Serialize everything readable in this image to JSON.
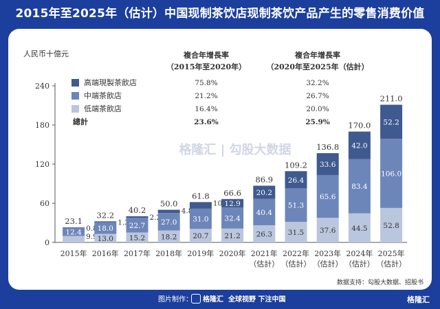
{
  "title": "2015年至2025年（估计）中国现制茶饮店现制茶饮产品产生的零售消费价值",
  "footer": {
    "made_by": "图片制作：",
    "brand": "格隆汇",
    "slogan": "全球视野 下注中国",
    "corner_brand": "格隆汇"
  },
  "watermark": "格隆汇 | 勾股大数据",
  "colors": {
    "header_bg": "#1c3f9e",
    "high": "#3f5a8f",
    "mid": "#6d86ba",
    "low": "#bac6de",
    "axis": "#555555",
    "text": "#333333"
  },
  "chart_data": {
    "type": "bar",
    "stacked": true,
    "unit_label": "人民币十億元",
    "categories": [
      [
        "2015年"
      ],
      [
        "2016年"
      ],
      [
        "2017年"
      ],
      [
        "2018年"
      ],
      [
        "2019年"
      ],
      [
        "2020年"
      ],
      [
        "2021年",
        "（估計）"
      ],
      [
        "2022年",
        "（估計）"
      ],
      [
        "2023年",
        "（估計）"
      ],
      [
        "2024年",
        "（估計）"
      ],
      [
        "2025年",
        "（估計）"
      ]
    ],
    "series": [
      {
        "name": "低端茶飲店",
        "values": [
          9.9,
          13.0,
          15.2,
          18.2,
          20.7,
          21.2,
          26.3,
          31.5,
          37.6,
          44.5,
          52.8
        ],
        "labels": [
          "9.9",
          "13.0",
          "15.2",
          "18.2",
          "20.7",
          "21.2",
          "26.3",
          "31.5",
          "37.6",
          "44.5",
          "52.8"
        ]
      },
      {
        "name": "中端茶飲店",
        "values": [
          12.4,
          18.0,
          22.7,
          27.0,
          31.0,
          32.4,
          40.4,
          51.3,
          65.6,
          83.4,
          106.0
        ],
        "labels": [
          "12.4",
          "18.0",
          "22.7",
          "27.0",
          "31.0",
          "32.4",
          "40.4",
          "51.3",
          "65.6",
          "83.4",
          "106.0"
        ]
      },
      {
        "name": "高端現製茶飲店",
        "values": [
          0.8,
          1.3,
          2.2,
          4.8,
          10.1,
          12.9,
          20.2,
          26.4,
          33.6,
          42.0,
          52.2
        ],
        "labels": [
          "0.8",
          "1.3",
          "2.2",
          "4.8",
          "10.1",
          "12.9",
          "20.2",
          "26.4",
          "33.6",
          "42.0",
          "52.2"
        ]
      }
    ],
    "totals": [
      "23.1",
      "32.2",
      "40.2",
      "50.0",
      "61.8",
      "66.6",
      "86.9",
      "109.2",
      "136.8",
      "170.0",
      "211.0"
    ],
    "yticks": [
      "0",
      "60",
      "120",
      "180",
      "240"
    ],
    "ylim": [
      0,
      240
    ],
    "cagr_table": {
      "header1": [
        "複合年增長率",
        "（2015年至2020年）"
      ],
      "header2": [
        "複合年增長率",
        "（2020年至2025年（估計）"
      ],
      "rows": [
        {
          "name": "高端現製茶飲店",
          "c1": "75.8%",
          "c2": "32.2%"
        },
        {
          "name": "中端茶飲店",
          "c1": "21.2%",
          "c2": "26.7%"
        },
        {
          "name": "低端茶飲店",
          "c1": "16.4%",
          "c2": "20.0%"
        },
        {
          "name": "總計",
          "c1": "23.6%",
          "c2": "25.9%"
        }
      ]
    },
    "source": "数据支持：勾股大数据、招股书"
  }
}
